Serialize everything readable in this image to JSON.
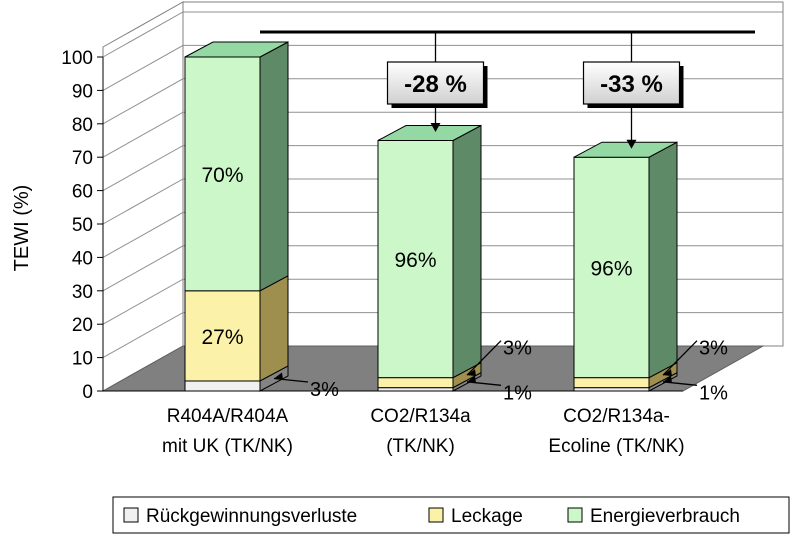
{
  "chart_data": {
    "type": "bar",
    "stacked": true,
    "three_d": true,
    "ylabel": "TEWI (%)",
    "ylim": [
      0,
      100
    ],
    "yticks": [
      "0",
      "10",
      "20",
      "30",
      "40",
      "50",
      "60",
      "70",
      "80",
      "90",
      "100"
    ],
    "grid": true,
    "legend_position": "bottom",
    "categories": [
      [
        "R404A/R404A",
        "mit UK (TK/NK)"
      ],
      [
        "CO2/R134a",
        "(TK/NK)"
      ],
      [
        "CO2/R134a-",
        "Ecoline (TK/NK)"
      ]
    ],
    "series": [
      {
        "name": "Rückgewinnungsverluste",
        "values": [
          3,
          1,
          1
        ]
      },
      {
        "name": "Leckage",
        "values": [
          27,
          3,
          3
        ]
      },
      {
        "name": "Energieverbrauch",
        "values": [
          70,
          71,
          66
        ]
      }
    ],
    "colors": {
      "Rückgewinnungsverluste": "#f0f0f0",
      "Leckage": "#fbf1a8",
      "Energieverbrauch": "#ccf7c9",
      "Energieverbrauch_side": "#5f8a68",
      "Energieverbrauch_top": "#94d9a3",
      "Leckage_side": "#9e8f4e",
      "floor": "#808080",
      "wall": "#ffffff"
    },
    "segment_labels": [
      {
        "bar": 0,
        "series": "Energieverbrauch",
        "text": "70%"
      },
      {
        "bar": 0,
        "series": "Leckage",
        "text": "27%"
      },
      {
        "bar": 0,
        "series": "Rückgewinnungsverluste",
        "text": "3%"
      },
      {
        "bar": 1,
        "series": "Energieverbrauch",
        "text": "96%"
      },
      {
        "bar": 1,
        "series": "Leckage",
        "text": "3%"
      },
      {
        "bar": 1,
        "series": "Rückgewinnungsverluste",
        "text": "1%"
      },
      {
        "bar": 2,
        "series": "Energieverbrauch",
        "text": "96%"
      },
      {
        "bar": 2,
        "series": "Leckage",
        "text": "3%"
      },
      {
        "bar": 2,
        "series": "Rückgewinnungsverluste",
        "text": "1%"
      }
    ],
    "reference_line": {
      "value": 100
    },
    "annotations": [
      {
        "bar": 1,
        "text": "-28 %"
      },
      {
        "bar": 2,
        "text": "-33 %"
      }
    ]
  }
}
